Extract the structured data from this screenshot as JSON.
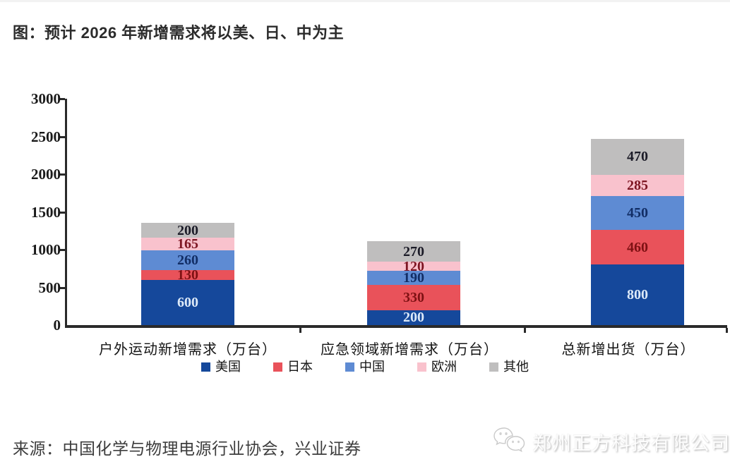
{
  "header": {
    "title": "图：预计 2026 年新增需求将以美、日、中为主"
  },
  "footer": {
    "source": "来源：中国化学与物理电源行业协会，兴业证券"
  },
  "watermark": {
    "icon": "wechat-bubbles-icon",
    "text": "郑州正方科技有限公司"
  },
  "chart_data": {
    "type": "bar",
    "stacked": true,
    "title": "预计 2026 年新增需求将以美、日、中为主",
    "unit": "万台",
    "categories": [
      "户外运动新增需求（万台）",
      "应急领域新增需求（万台）",
      "总新增出货（万台）"
    ],
    "series": [
      {
        "name": "美国",
        "values": [
          600,
          200,
          800
        ],
        "color": "#15489B",
        "label_color": "#DCE9F8"
      },
      {
        "name": "日本",
        "values": [
          130,
          330,
          460
        ],
        "color": "#E9525A",
        "label_color": "#7E1113"
      },
      {
        "name": "中国",
        "values": [
          260,
          190,
          450
        ],
        "color": "#5E8BD3",
        "label_color": "#122E66"
      },
      {
        "name": "欧洲",
        "values": [
          165,
          120,
          285
        ],
        "color": "#F9C2CD",
        "label_color": "#7D1522"
      },
      {
        "name": "其他",
        "values": [
          200,
          270,
          470
        ],
        "color": "#BFBEBE",
        "label_color": "#1C1C28"
      }
    ],
    "totals": [
      1355,
      1110,
      2465
    ],
    "ylim": [
      0,
      3000
    ],
    "yticks": [
      0,
      500,
      1000,
      1500,
      2000,
      2500,
      3000
    ],
    "grid": false,
    "legend_position": "bottom",
    "axis_color": "#2a2a2a"
  }
}
